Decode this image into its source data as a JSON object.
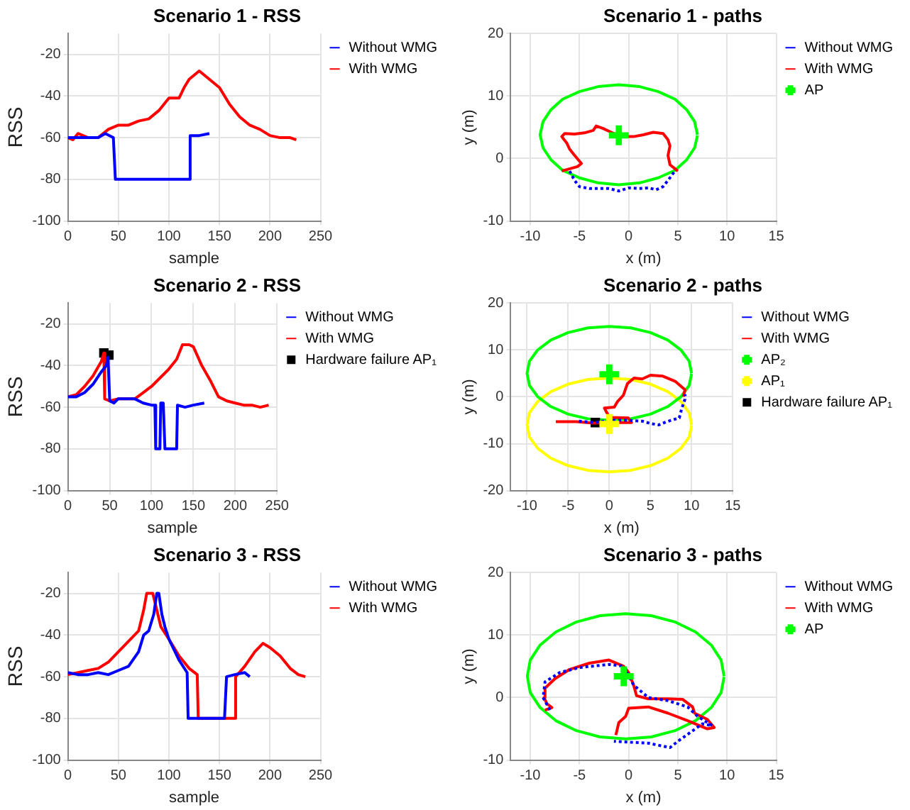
{
  "chart_data": [
    {
      "type": "line",
      "title": "Scenario 1 - RSS",
      "xlabel": "sample",
      "ylabel": "RSS",
      "xlim": [
        0,
        250
      ],
      "xticks": [
        0,
        50,
        100,
        150,
        200,
        250
      ],
      "ylim": [
        -100,
        -10
      ],
      "yticks": [
        -100,
        -80,
        -60,
        -40,
        -20
      ],
      "grid": true,
      "legend": "top right",
      "series": [
        {
          "name": "Without WMG",
          "color": "#0000ff",
          "marker": "none",
          "line_style": "solid",
          "x": [
            0,
            10,
            20,
            30,
            37,
            45,
            47,
            120,
            121,
            125,
            130,
            140
          ],
          "values": [
            -60,
            -60,
            -60,
            -60,
            -58,
            -60,
            -80,
            -80,
            -59,
            -59,
            -59,
            -58
          ]
        },
        {
          "name": "With WMG",
          "color": "#ff0000",
          "marker": "none",
          "line_style": "solid",
          "x": [
            0,
            5,
            10,
            20,
            30,
            40,
            50,
            60,
            70,
            80,
            90,
            100,
            110,
            115,
            120,
            130,
            140,
            150,
            160,
            170,
            180,
            190,
            200,
            210,
            220,
            226
          ],
          "values": [
            -60,
            -61,
            -58,
            -60,
            -60,
            -56,
            -54,
            -54,
            -52,
            -51,
            -47,
            -41,
            -41,
            -36,
            -32,
            -28,
            -32,
            -36,
            -44,
            -50,
            -54,
            -56,
            -59,
            -60,
            -60,
            -61
          ]
        }
      ]
    },
    {
      "type": "line",
      "title": "Scenario 1 - paths",
      "xlabel": "x (m)",
      "ylabel": "y (m)",
      "xlim": [
        -12,
        15
      ],
      "xticks": [
        -10,
        -5,
        0,
        5,
        10,
        15
      ],
      "ylim": [
        -10,
        20
      ],
      "yticks": [
        -10,
        0,
        10,
        20
      ],
      "grid": true,
      "legend": "top right",
      "series": [
        {
          "name": "Without WMG",
          "color": "#0000ff",
          "marker": "none",
          "line_style": "dotted",
          "x": [
            -6,
            -5.5,
            -5,
            -4,
            -2,
            -1,
            0,
            1,
            2,
            2.8,
            3.5,
            4,
            4.7
          ],
          "values": [
            -2,
            -3.5,
            -4.5,
            -4.8,
            -4.8,
            -5.2,
            -4.7,
            -4.8,
            -4.7,
            -5,
            -4.5,
            -3.5,
            -2
          ]
        },
        {
          "name": "With WMG",
          "color": "#ff0000",
          "marker": "none",
          "line_style": "solid",
          "x": [
            -6.8,
            -5.2,
            -4.8,
            -5.5,
            -6,
            -6.3,
            -6.8,
            -6.5,
            -5.5,
            -4.5,
            -3.6,
            -3.3,
            -2.6,
            -1.5,
            -0.5,
            0.5,
            1.5,
            2.5,
            3.5,
            4,
            4.2,
            4,
            4.2,
            5
          ],
          "values": [
            -2,
            -1.3,
            -0.8,
            0.5,
            1.5,
            2.5,
            3.5,
            4,
            3.9,
            4.1,
            4.5,
            5.2,
            4.8,
            4,
            3.5,
            3.5,
            3.8,
            4.2,
            4,
            3,
            2,
            0.5,
            -1,
            -2
          ]
        },
        {
          "color": "#00ff00",
          "marker": "none",
          "line_style": "solid",
          "x": [
            7,
            6.7,
            5.9,
            4.7,
            3,
            1.1,
            -1,
            -3.1,
            -5,
            -6.7,
            -7.9,
            -8.7,
            -9,
            -8.7,
            -7.9,
            -6.7,
            -5,
            -3.1,
            -1,
            1.1,
            3,
            4.7,
            5.9,
            6.7,
            7
          ],
          "values": [
            3.8,
            5.9,
            7.8,
            9.5,
            10.7,
            11.5,
            11.8,
            11.5,
            10.7,
            9.5,
            7.8,
            5.9,
            3.8,
            1.7,
            -0.2,
            -1.9,
            -3.1,
            -3.9,
            -4.2,
            -3.9,
            -3.1,
            -1.9,
            -0.2,
            1.7,
            3.7
          ]
        },
        {
          "name": "AP",
          "type": "scatter",
          "color": "#00ff00",
          "marker": "cross",
          "x": [
            -1
          ],
          "values": [
            3.7
          ]
        }
      ]
    },
    {
      "type": "line",
      "title": "Scenario 2 - RSS",
      "xlabel": "sample",
      "ylabel": "RSS",
      "xlim": [
        0,
        250
      ],
      "xticks": [
        0,
        50,
        100,
        150,
        200,
        250
      ],
      "ylim": [
        -100,
        -10
      ],
      "yticks": [
        -100,
        -80,
        -60,
        -40,
        -20
      ],
      "grid": true,
      "legend": "top right",
      "series": [
        {
          "name": "Without WMG",
          "color": "#0000ff",
          "marker": "none",
          "line_style": "solid",
          "x": [
            0,
            10,
            20,
            30,
            40,
            46,
            48,
            50,
            55,
            60,
            70,
            80,
            90,
            100,
            104,
            105,
            110,
            111,
            114,
            116,
            130,
            131,
            140,
            150,
            163
          ],
          "values": [
            -55,
            -55,
            -53,
            -49,
            -43,
            -40,
            -36,
            -57,
            -58,
            -56,
            -56,
            -56,
            -58,
            -59,
            -59,
            -80,
            -80,
            -58,
            -58,
            -80,
            -80,
            -59,
            -60,
            -59,
            -58
          ]
        },
        {
          "name": "With WMG",
          "color": "#ff0000",
          "marker": "none",
          "line_style": "solid",
          "x": [
            0,
            10,
            20,
            30,
            40,
            43,
            44,
            50,
            60,
            70,
            80,
            90,
            100,
            110,
            120,
            130,
            137,
            145,
            150,
            160,
            170,
            180,
            190,
            200,
            210,
            220,
            230,
            240
          ],
          "values": [
            -55,
            -54,
            -50,
            -45,
            -38,
            -34,
            -56,
            -57,
            -56,
            -56,
            -56,
            -53,
            -50,
            -46,
            -42,
            -37,
            -30,
            -30,
            -31,
            -40,
            -47,
            -55,
            -57,
            -58,
            -59,
            -59,
            -60,
            -59
          ]
        },
        {
          "name": "Hardware failure AP₁",
          "type": "scatter",
          "color": "#000000",
          "marker": "square",
          "x": [
            43,
            49
          ],
          "values": [
            -34,
            -35
          ]
        }
      ]
    },
    {
      "type": "line",
      "title": "Scenario 2 - paths",
      "xlabel": "x (m)",
      "ylabel": "y (m)",
      "xlim": [
        -12,
        15
      ],
      "xticks": [
        -10,
        -5,
        0,
        5,
        10,
        15
      ],
      "ylim": [
        -20,
        20
      ],
      "yticks": [
        -20,
        -10,
        0,
        10,
        20
      ],
      "grid": true,
      "legend": "top right",
      "series": [
        {
          "name": "Without WMG",
          "color": "#0000ff",
          "marker": "none",
          "line_style": "dotted",
          "x": [
            -3.7,
            -1.7,
            0,
            2,
            4,
            5,
            6,
            7,
            8.5,
            8.8,
            9.2,
            9.2
          ],
          "values": [
            -5.2,
            -5.5,
            -5,
            -5,
            -5.2,
            -5.7,
            -6,
            -5.3,
            -4.5,
            -2.5,
            -0.5,
            0.5
          ]
        },
        {
          "name": "With WMG",
          "color": "#ff0000",
          "marker": "none",
          "line_style": "solid",
          "x": [
            -6.5,
            -4,
            -2,
            0,
            2.7,
            2.3,
            0,
            -0.6,
            0.6,
            1,
            1.7,
            2.2,
            3,
            4,
            5,
            6.5,
            8,
            9.2,
            9
          ],
          "values": [
            -5.3,
            -5.3,
            -5.6,
            -5.5,
            -5.5,
            -4.5,
            -4.4,
            -2.4,
            -2.2,
            -1,
            0.3,
            2.8,
            4,
            3.8,
            4.6,
            4.4,
            3.3,
            1.5,
            0
          ]
        },
        {
          "name": "AP₂",
          "type": "scatter",
          "color": "#00ff00",
          "marker": "cross",
          "x": [
            0
          ],
          "values": [
            4.8
          ]
        },
        {
          "name": "AP₁",
          "type": "scatter",
          "color": "#ffff00",
          "marker": "cross",
          "x": [
            0
          ],
          "values": [
            -5.8
          ]
        },
        {
          "name": "Hardware failure AP₁",
          "type": "scatter",
          "color": "#000000",
          "marker": "square",
          "x": [
            -1.7
          ],
          "values": [
            -5.5
          ]
        },
        {
          "color": "#00ff00",
          "marker": "none",
          "line_style": "solid",
          "x": [
            10,
            9.7,
            8.7,
            7.1,
            5,
            2.6,
            0,
            -2.6,
            -5,
            -7.1,
            -8.7,
            -9.7,
            -10,
            -9.7,
            -8.7,
            -7.1,
            -5,
            -2.6,
            0,
            2.6,
            5,
            7.1,
            8.7,
            9.7,
            10
          ],
          "values": [
            5,
            7.6,
            10,
            12.1,
            13.7,
            14.7,
            15,
            14.7,
            13.7,
            12.1,
            10,
            7.6,
            5,
            2.4,
            0,
            -2.1,
            -3.7,
            -4.7,
            -5,
            -4.7,
            -3.7,
            -2.1,
            0,
            2.4,
            4.9
          ]
        },
        {
          "color": "#ffff00",
          "marker": "none",
          "line_style": "solid",
          "x": [
            10,
            9.7,
            8.7,
            7.1,
            5,
            2.6,
            0,
            -2.6,
            -5,
            -7.1,
            -8.7,
            -9.7,
            -10,
            -9.7,
            -8.7,
            -7.1,
            -5,
            -2.6,
            0,
            2.6,
            5,
            7.1,
            8.7,
            9.7,
            10
          ],
          "values": [
            -6,
            -3.4,
            -1,
            1.1,
            2.7,
            3.7,
            4,
            3.7,
            2.7,
            1.1,
            -1,
            -3.4,
            -6,
            -8.6,
            -11,
            -13.1,
            -14.7,
            -15.7,
            -16,
            -15.7,
            -14.7,
            -13.1,
            -11,
            -8.6,
            -6.1
          ]
        }
      ]
    },
    {
      "type": "line",
      "title": "Scenario 3 - RSS",
      "xlabel": "sample",
      "ylabel": "RSS",
      "xlim": [
        0,
        250
      ],
      "xticks": [
        0,
        50,
        100,
        150,
        200,
        250
      ],
      "ylim": [
        -100,
        -10
      ],
      "yticks": [
        -100,
        -80,
        -60,
        -40,
        -20
      ],
      "grid": true,
      "legend": "top right",
      "series": [
        {
          "name": "Without WMG",
          "color": "#0000ff",
          "marker": "none",
          "line_style": "solid",
          "x": [
            0,
            10,
            20,
            30,
            40,
            50,
            60,
            70,
            75,
            80,
            85,
            88,
            90,
            93,
            96,
            100,
            110,
            118,
            119,
            155,
            157,
            165,
            175,
            180
          ],
          "values": [
            -58,
            -59,
            -59,
            -58,
            -59,
            -57,
            -55,
            -48,
            -40,
            -38,
            -30,
            -20,
            -20,
            -30,
            -36,
            -42,
            -52,
            -58,
            -80,
            -80,
            -60,
            -59,
            -58,
            -60
          ]
        },
        {
          "name": "With WMG",
          "color": "#ff0000",
          "marker": "none",
          "line_style": "solid",
          "x": [
            0,
            10,
            20,
            30,
            40,
            50,
            60,
            70,
            75,
            78,
            84,
            88,
            92,
            100,
            110,
            120,
            128,
            129,
            165,
            166,
            175,
            185,
            193,
            200,
            210,
            220,
            228,
            235
          ],
          "values": [
            -59,
            -58,
            -57,
            -56,
            -53,
            -48,
            -43,
            -38,
            -28,
            -20,
            -20,
            -28,
            -36,
            -42,
            -50,
            -56,
            -59,
            -80,
            -80,
            -60,
            -55,
            -48,
            -44,
            -46,
            -50,
            -56,
            -59,
            -60
          ]
        }
      ]
    },
    {
      "type": "line",
      "title": "Scenario 3 - paths",
      "xlabel": "x (m)",
      "ylabel": "y (m)",
      "xlim": [
        -12,
        15
      ],
      "xticks": [
        -10,
        -5,
        0,
        5,
        10,
        15
      ],
      "ylim": [
        -10,
        20
      ],
      "yticks": [
        -10,
        0,
        10,
        20
      ],
      "grid": true,
      "legend": "top right",
      "series": [
        {
          "name": "Without WMG",
          "color": "#0000ff",
          "marker": "none",
          "line_style": "dotted",
          "x": [
            -8,
            -8.7,
            -8.5,
            -7,
            -5,
            -2,
            -0.5,
            0.5,
            2,
            4,
            6,
            7,
            8.5,
            7.5,
            5,
            4.2,
            2,
            -1.5
          ],
          "values": [
            -2,
            0,
            2.5,
            4,
            4.8,
            5.3,
            5,
            2,
            0,
            -0.5,
            -1.5,
            -3,
            -4.5,
            -4.2,
            -7,
            -8,
            -7.3,
            -7
          ]
        },
        {
          "name": "With WMG",
          "color": "#ff0000",
          "marker": "none",
          "line_style": "solid",
          "x": [
            -8.5,
            -7.8,
            -8.3,
            -8.6,
            -8.5,
            -7.5,
            -6,
            -4,
            -2,
            -0.5,
            0,
            0.5,
            0.8,
            2,
            4,
            5.5,
            6.5,
            6.7,
            8,
            8.7,
            8,
            6,
            4,
            2,
            0,
            -0.3,
            -1,
            -1.3
          ],
          "values": [
            -2,
            -1.6,
            -1,
            0,
            1.5,
            3,
            4.5,
            5.5,
            6,
            5,
            4,
            2,
            0.3,
            -0.2,
            -0.2,
            -0.3,
            -1.5,
            -2.5,
            -3.5,
            -4.8,
            -5,
            -3.7,
            -2.5,
            -1.5,
            -1.7,
            -3,
            -4,
            -6
          ]
        },
        {
          "color": "#00ff00",
          "marker": "none",
          "line_style": "solid",
          "x": [
            9.7,
            9.4,
            8.4,
            6.8,
            4.7,
            2.3,
            -0.3,
            -2.9,
            -5.3,
            -7.4,
            -9,
            -10,
            -10.3,
            -10,
            -9,
            -7.4,
            -5.3,
            -2.9,
            -0.3,
            2.3,
            4.7,
            6.8,
            8.4,
            9.4,
            9.7
          ],
          "values": [
            3.4,
            6,
            8.4,
            10.5,
            12.1,
            13.1,
            13.4,
            13.1,
            12.1,
            10.5,
            8.4,
            6,
            3.4,
            0.8,
            -1.6,
            -3.7,
            -5.3,
            -6.3,
            -6.6,
            -6.3,
            -5.3,
            -3.7,
            -1.6,
            0.8,
            3.3
          ]
        },
        {
          "name": "AP",
          "type": "scatter",
          "color": "#00ff00",
          "marker": "cross",
          "x": [
            -0.5
          ],
          "values": [
            3.4
          ]
        }
      ]
    }
  ]
}
